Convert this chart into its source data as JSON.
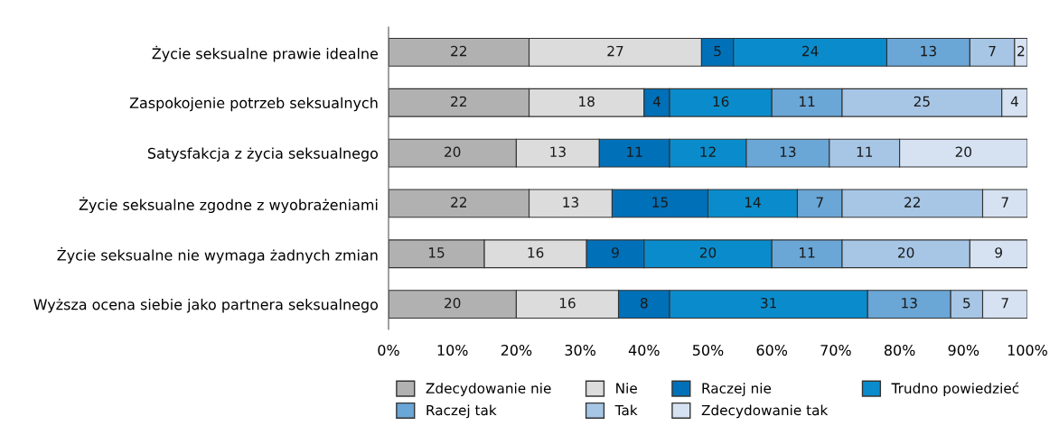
{
  "chart_data": {
    "type": "bar",
    "orientation": "horizontal",
    "stacked": true,
    "data_labels": true,
    "grid": false,
    "legend": "bottom",
    "categories": [
      "Życie seksualne prawie idealne",
      "Zaspokojenie potrzeb seksualnych",
      "Satysfakcja z życia seksualnego",
      "Życie seksualne zgodne z wyobrażeniami",
      "Życie seksualne nie wymaga żadnych zmian",
      "Wyższa ocena siebie jako partnera seksualnego"
    ],
    "xlim": [
      0,
      100
    ],
    "xticks": [
      {
        "value": 0,
        "label": "0%"
      },
      {
        "value": 10,
        "label": "10%"
      },
      {
        "value": 20,
        "label": "20%"
      },
      {
        "value": 30,
        "label": "30%"
      },
      {
        "value": 40,
        "label": "40%"
      },
      {
        "value": 50,
        "label": "50%"
      },
      {
        "value": 60,
        "label": "60%"
      },
      {
        "value": 70,
        "label": "70%"
      },
      {
        "value": 80,
        "label": "80%"
      },
      {
        "value": 90,
        "label": "90%"
      },
      {
        "value": 100,
        "label": "100%"
      }
    ],
    "series": [
      {
        "name": "Zdecydowanie nie",
        "color": "#b1b1b1",
        "values": [
          22,
          22,
          20,
          22,
          15,
          20
        ]
      },
      {
        "name": "Nie",
        "color": "#dcdcdc",
        "values": [
          27,
          18,
          13,
          13,
          16,
          16
        ]
      },
      {
        "name": "Raczej nie",
        "color": "#0070b8",
        "values": [
          5,
          4,
          11,
          15,
          9,
          8
        ]
      },
      {
        "name": "Trudno powiedzieć",
        "color": "#0a8ccc",
        "values": [
          24,
          16,
          12,
          14,
          20,
          31
        ]
      },
      {
        "name": "Raczej tak",
        "color": "#6aa6d6",
        "values": [
          13,
          11,
          13,
          7,
          11,
          13
        ]
      },
      {
        "name": "Tak",
        "color": "#a7c6e6",
        "values": [
          7,
          25,
          11,
          22,
          20,
          5
        ]
      },
      {
        "name": "Zdecydowanie tak",
        "color": "#d6e2f2",
        "values": [
          2,
          4,
          20,
          7,
          9,
          7
        ]
      }
    ]
  }
}
